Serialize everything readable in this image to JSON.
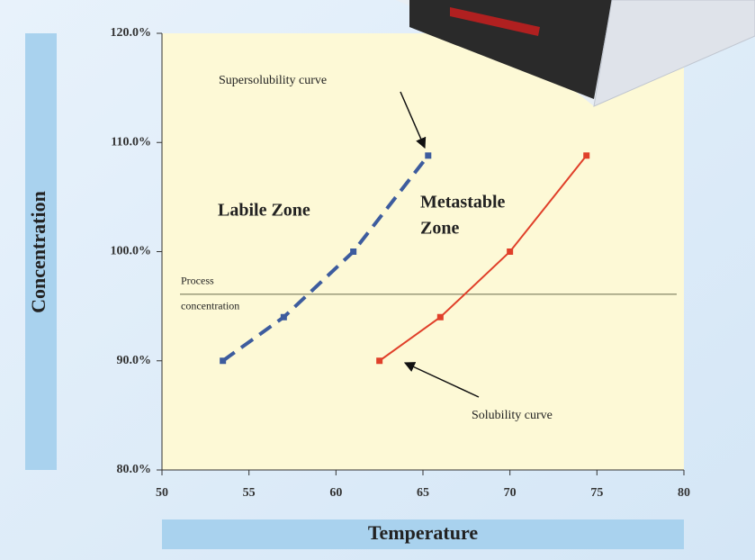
{
  "chart_data": {
    "type": "line",
    "xlabel": "Temperature",
    "ylabel": "Concentration",
    "xlim": [
      50,
      80
    ],
    "xticks": [
      50,
      55,
      60,
      65,
      70,
      75,
      80
    ],
    "ylim": [
      80,
      120
    ],
    "yticks": [
      {
        "value": 80,
        "label": "80.0%"
      },
      {
        "value": 90,
        "label": "90.0%"
      },
      {
        "value": 100,
        "label": "100.0%"
      },
      {
        "value": 110,
        "label": "110.0%"
      },
      {
        "value": 120,
        "label": "120.0%"
      }
    ],
    "series": [
      {
        "name": "Supersolubility curve",
        "color": "#3d5c9e",
        "style": "dashed",
        "x": [
          53.5,
          57,
          61,
          65.3
        ],
        "values": [
          90,
          94,
          100,
          108.8
        ]
      },
      {
        "name": "Solubility curve",
        "color": "#e0402a",
        "style": "solid",
        "x": [
          62.5,
          66,
          70,
          74.4
        ],
        "values": [
          90,
          94,
          100,
          108.8
        ]
      }
    ],
    "reference_line": {
      "value": 96.1,
      "label": [
        "Process",
        "concentration"
      ],
      "color": "#9a9a7a"
    },
    "zones": [
      [
        "Labile Zone"
      ],
      [
        "Metastable",
        "Zone"
      ]
    ]
  }
}
